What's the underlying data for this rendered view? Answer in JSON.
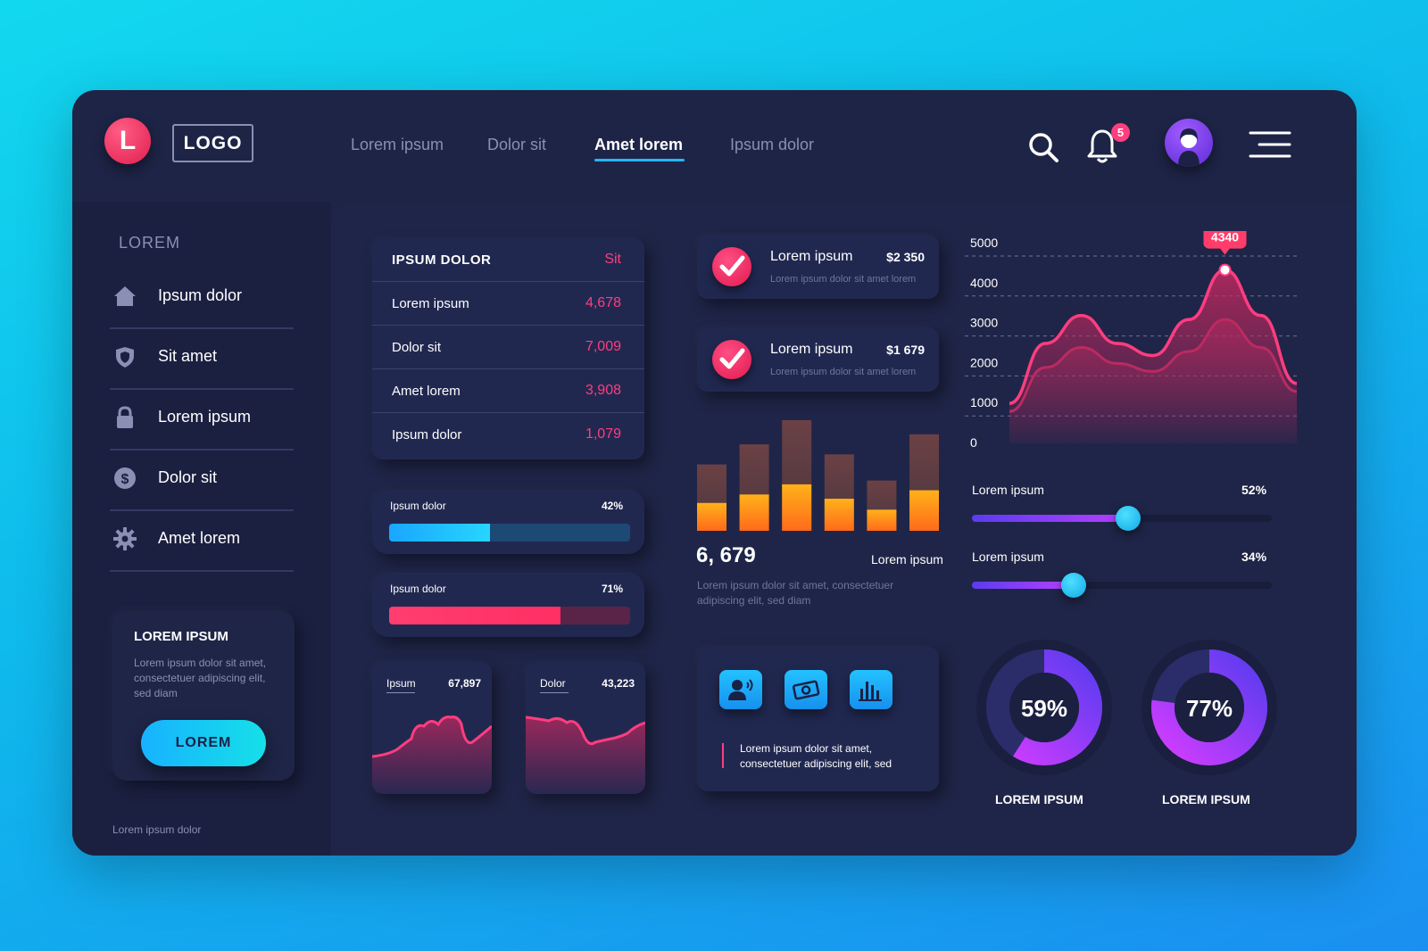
{
  "header": {
    "logo_letter": "L",
    "logo_text": "LOGO",
    "nav": [
      "Lorem ipsum",
      "Dolor sit",
      "Amet lorem",
      "Ipsum dolor"
    ],
    "active_nav_index": 2,
    "notification_count": "5"
  },
  "sidebar": {
    "title": "LOREM",
    "items": [
      {
        "label": "Ipsum dolor",
        "icon": "home-icon"
      },
      {
        "label": "Sit amet",
        "icon": "shield-icon"
      },
      {
        "label": "Lorem ipsum",
        "icon": "lock-icon"
      },
      {
        "label": "Dolor sit",
        "icon": "dollar-icon"
      },
      {
        "label": "Amet lorem",
        "icon": "gear-icon"
      }
    ],
    "promo": {
      "title": "LOREM IPSUM",
      "text": "Lorem ipsum dolor sit amet, consectetuer adipiscing elit, sed diam",
      "button": "LOREM"
    },
    "footer": "Lorem ipsum dolor"
  },
  "table": {
    "header": {
      "label": "IPSUM DOLOR",
      "value": "Sit"
    },
    "rows": [
      {
        "label": "Lorem ipsum",
        "value": "4,678"
      },
      {
        "label": "Dolor sit",
        "value": "7,009"
      },
      {
        "label": "Amet lorem",
        "value": "3,908"
      },
      {
        "label": "Ipsum dolor",
        "value": "1,079"
      }
    ]
  },
  "progress": [
    {
      "label": "Ipsum dolor",
      "value_text": "42%",
      "value": 0.42,
      "color": "#25c3ff"
    },
    {
      "label": "Ipsum dolor",
      "value_text": "71%",
      "value": 0.71,
      "color": "#ff3d7f"
    }
  ],
  "minis": [
    {
      "label": "Ipsum",
      "value": "67,897"
    },
    {
      "label": "Dolor",
      "value": "43,223"
    }
  ],
  "checks": [
    {
      "title": "Lorem ipsum",
      "amount": "$2 350",
      "sub": "Lorem ipsum dolor sit amet lorem"
    },
    {
      "title": "Lorem ipsum",
      "amount": "$1 679",
      "sub": "Lorem ipsum dolor sit amet lorem"
    }
  ],
  "bar_summary": {
    "value": "6, 679",
    "caption": "Lorem ipsum",
    "desc": "Lorem ipsum dolor sit amet, consectetuer adipiscing elit, sed diam"
  },
  "icon_card": {
    "icons": [
      "user-voice-icon",
      "money-icon",
      "bar-chart-icon"
    ],
    "desc": "Lorem ipsum dolor sit amet, consectetuer adipiscing elit, sed"
  },
  "sliders": [
    {
      "label": "Lorem ipsum",
      "value_text": "52%",
      "value": 0.52
    },
    {
      "label": "Lorem ipsum",
      "value_text": "34%",
      "value": 0.34
    }
  ],
  "donuts": [
    {
      "value_text": "59%",
      "value": 0.59,
      "label": "LOREM IPSUM"
    },
    {
      "value_text": "77%",
      "value": 0.77,
      "label": "LOREM IPSUM"
    }
  ],
  "colors": {
    "accent_pink": "#ff3d7f",
    "accent_blue": "#25b6ff",
    "panel": "#1e2446",
    "bar_top": "#5a3a3a",
    "bar_bottom": "#ff9a1a"
  },
  "chart_data": [
    {
      "type": "area",
      "ylim": [
        0,
        5000
      ],
      "y_ticks": [
        "5000",
        "4000",
        "3000",
        "2000",
        "1000",
        "0"
      ],
      "series": [
        {
          "values": [
            1000,
            2500,
            3200,
            2500,
            2200,
            3100,
            4340,
            3200,
            1500
          ]
        },
        {
          "values": [
            800,
            1900,
            2400,
            2000,
            1800,
            2300,
            3100,
            2400,
            1300
          ]
        }
      ],
      "highlight": {
        "index": 6,
        "label": "4340"
      },
      "grid": true
    },
    {
      "type": "bar",
      "note_stacked": true,
      "series": [
        {
          "values": [
            33,
            43,
            55,
            38,
            25,
            48
          ]
        },
        {
          "values": [
            30,
            40,
            50,
            35,
            22,
            45
          ]
        }
      ],
      "ylim": [
        0,
        120
      ]
    }
  ]
}
